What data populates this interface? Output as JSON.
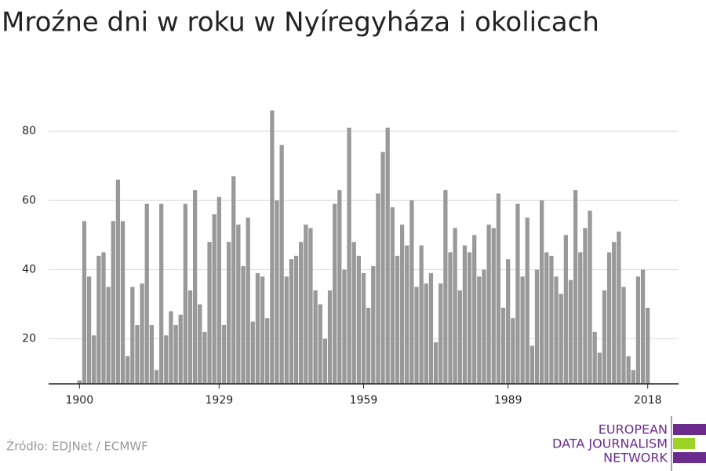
{
  "chart_data": {
    "type": "bar",
    "title": "Mroźne dni w roku w Nyíregyháza i okolicach",
    "x": [
      1900,
      1901,
      1902,
      1903,
      1904,
      1905,
      1906,
      1907,
      1908,
      1909,
      1910,
      1911,
      1912,
      1913,
      1914,
      1915,
      1916,
      1917,
      1918,
      1919,
      1920,
      1921,
      1922,
      1923,
      1924,
      1925,
      1926,
      1927,
      1928,
      1929,
      1930,
      1931,
      1932,
      1933,
      1934,
      1935,
      1936,
      1937,
      1938,
      1939,
      1940,
      1941,
      1942,
      1943,
      1944,
      1945,
      1946,
      1947,
      1948,
      1949,
      1950,
      1951,
      1952,
      1953,
      1954,
      1955,
      1956,
      1957,
      1958,
      1959,
      1960,
      1961,
      1962,
      1963,
      1964,
      1965,
      1966,
      1967,
      1968,
      1969,
      1970,
      1971,
      1972,
      1973,
      1974,
      1975,
      1976,
      1977,
      1978,
      1979,
      1980,
      1981,
      1982,
      1983,
      1984,
      1985,
      1986,
      1987,
      1988,
      1989,
      1990,
      1991,
      1992,
      1993,
      1994,
      1995,
      1996,
      1997,
      1998,
      1999,
      2000,
      2001,
      2002,
      2003,
      2004,
      2005,
      2006,
      2007,
      2008,
      2009,
      2010,
      2011,
      2012,
      2013,
      2014,
      2015,
      2016,
      2017,
      2018
    ],
    "values": [
      8,
      54,
      38,
      21,
      44,
      45,
      35,
      54,
      66,
      54,
      15,
      35,
      24,
      36,
      59,
      24,
      11,
      59,
      21,
      28,
      24,
      27,
      59,
      34,
      63,
      30,
      22,
      48,
      56,
      61,
      24,
      48,
      67,
      53,
      41,
      55,
      25,
      39,
      38,
      26,
      86,
      60,
      76,
      38,
      43,
      44,
      48,
      53,
      52,
      34,
      30,
      20,
      34,
      59,
      63,
      40,
      81,
      48,
      44,
      39,
      29,
      41,
      62,
      74,
      81,
      58,
      44,
      53,
      47,
      60,
      35,
      47,
      36,
      39,
      19,
      36,
      63,
      45,
      52,
      34,
      47,
      45,
      50,
      38,
      40,
      53,
      52,
      62,
      29,
      43,
      26,
      59,
      38,
      55,
      18,
      40,
      60,
      45,
      44,
      38,
      33,
      50,
      37,
      63,
      45,
      52,
      57,
      22,
      16,
      34,
      45,
      48,
      51,
      35,
      15,
      11,
      38,
      40,
      29
    ],
    "color": "#999999",
    "xlim": [
      1893.6,
      2024.4
    ],
    "xticks": [
      1900,
      1929,
      1959,
      1989,
      2018
    ],
    "ylim": [
      7,
      90
    ],
    "yticks": [
      20,
      40,
      60,
      80
    ],
    "grid": true
  },
  "source": "Źródło: EDJNet / ECMWF",
  "logo": [
    "EUROPEAN",
    "DATA JOURNALISM",
    "NETWORK"
  ]
}
